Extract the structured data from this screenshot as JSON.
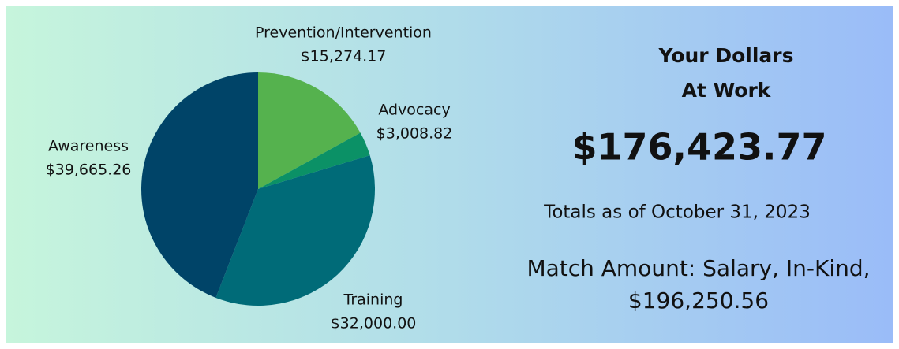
{
  "chart_data": {
    "type": "pie",
    "categories": [
      "Prevention/Intervention",
      "Advocacy",
      "Training",
      "Awareness"
    ],
    "values": [
      15274.17,
      3008.82,
      32000.0,
      39665.26
    ],
    "value_labels": [
      "$15,274.17",
      "$3,008.82",
      "$32,000.00",
      "$39,665.26"
    ],
    "colors": [
      "#55b24e",
      "#0b9166",
      "#006b78",
      "#004468"
    ]
  },
  "panel": {
    "heading": [
      "Your Dollars",
      "At Work"
    ],
    "total": "$176,423.77",
    "as_of": "Totals as of October 31, 2023",
    "match_label": "Match Amount: Salary, In-Kind,",
    "match_value": "$196,250.56"
  }
}
